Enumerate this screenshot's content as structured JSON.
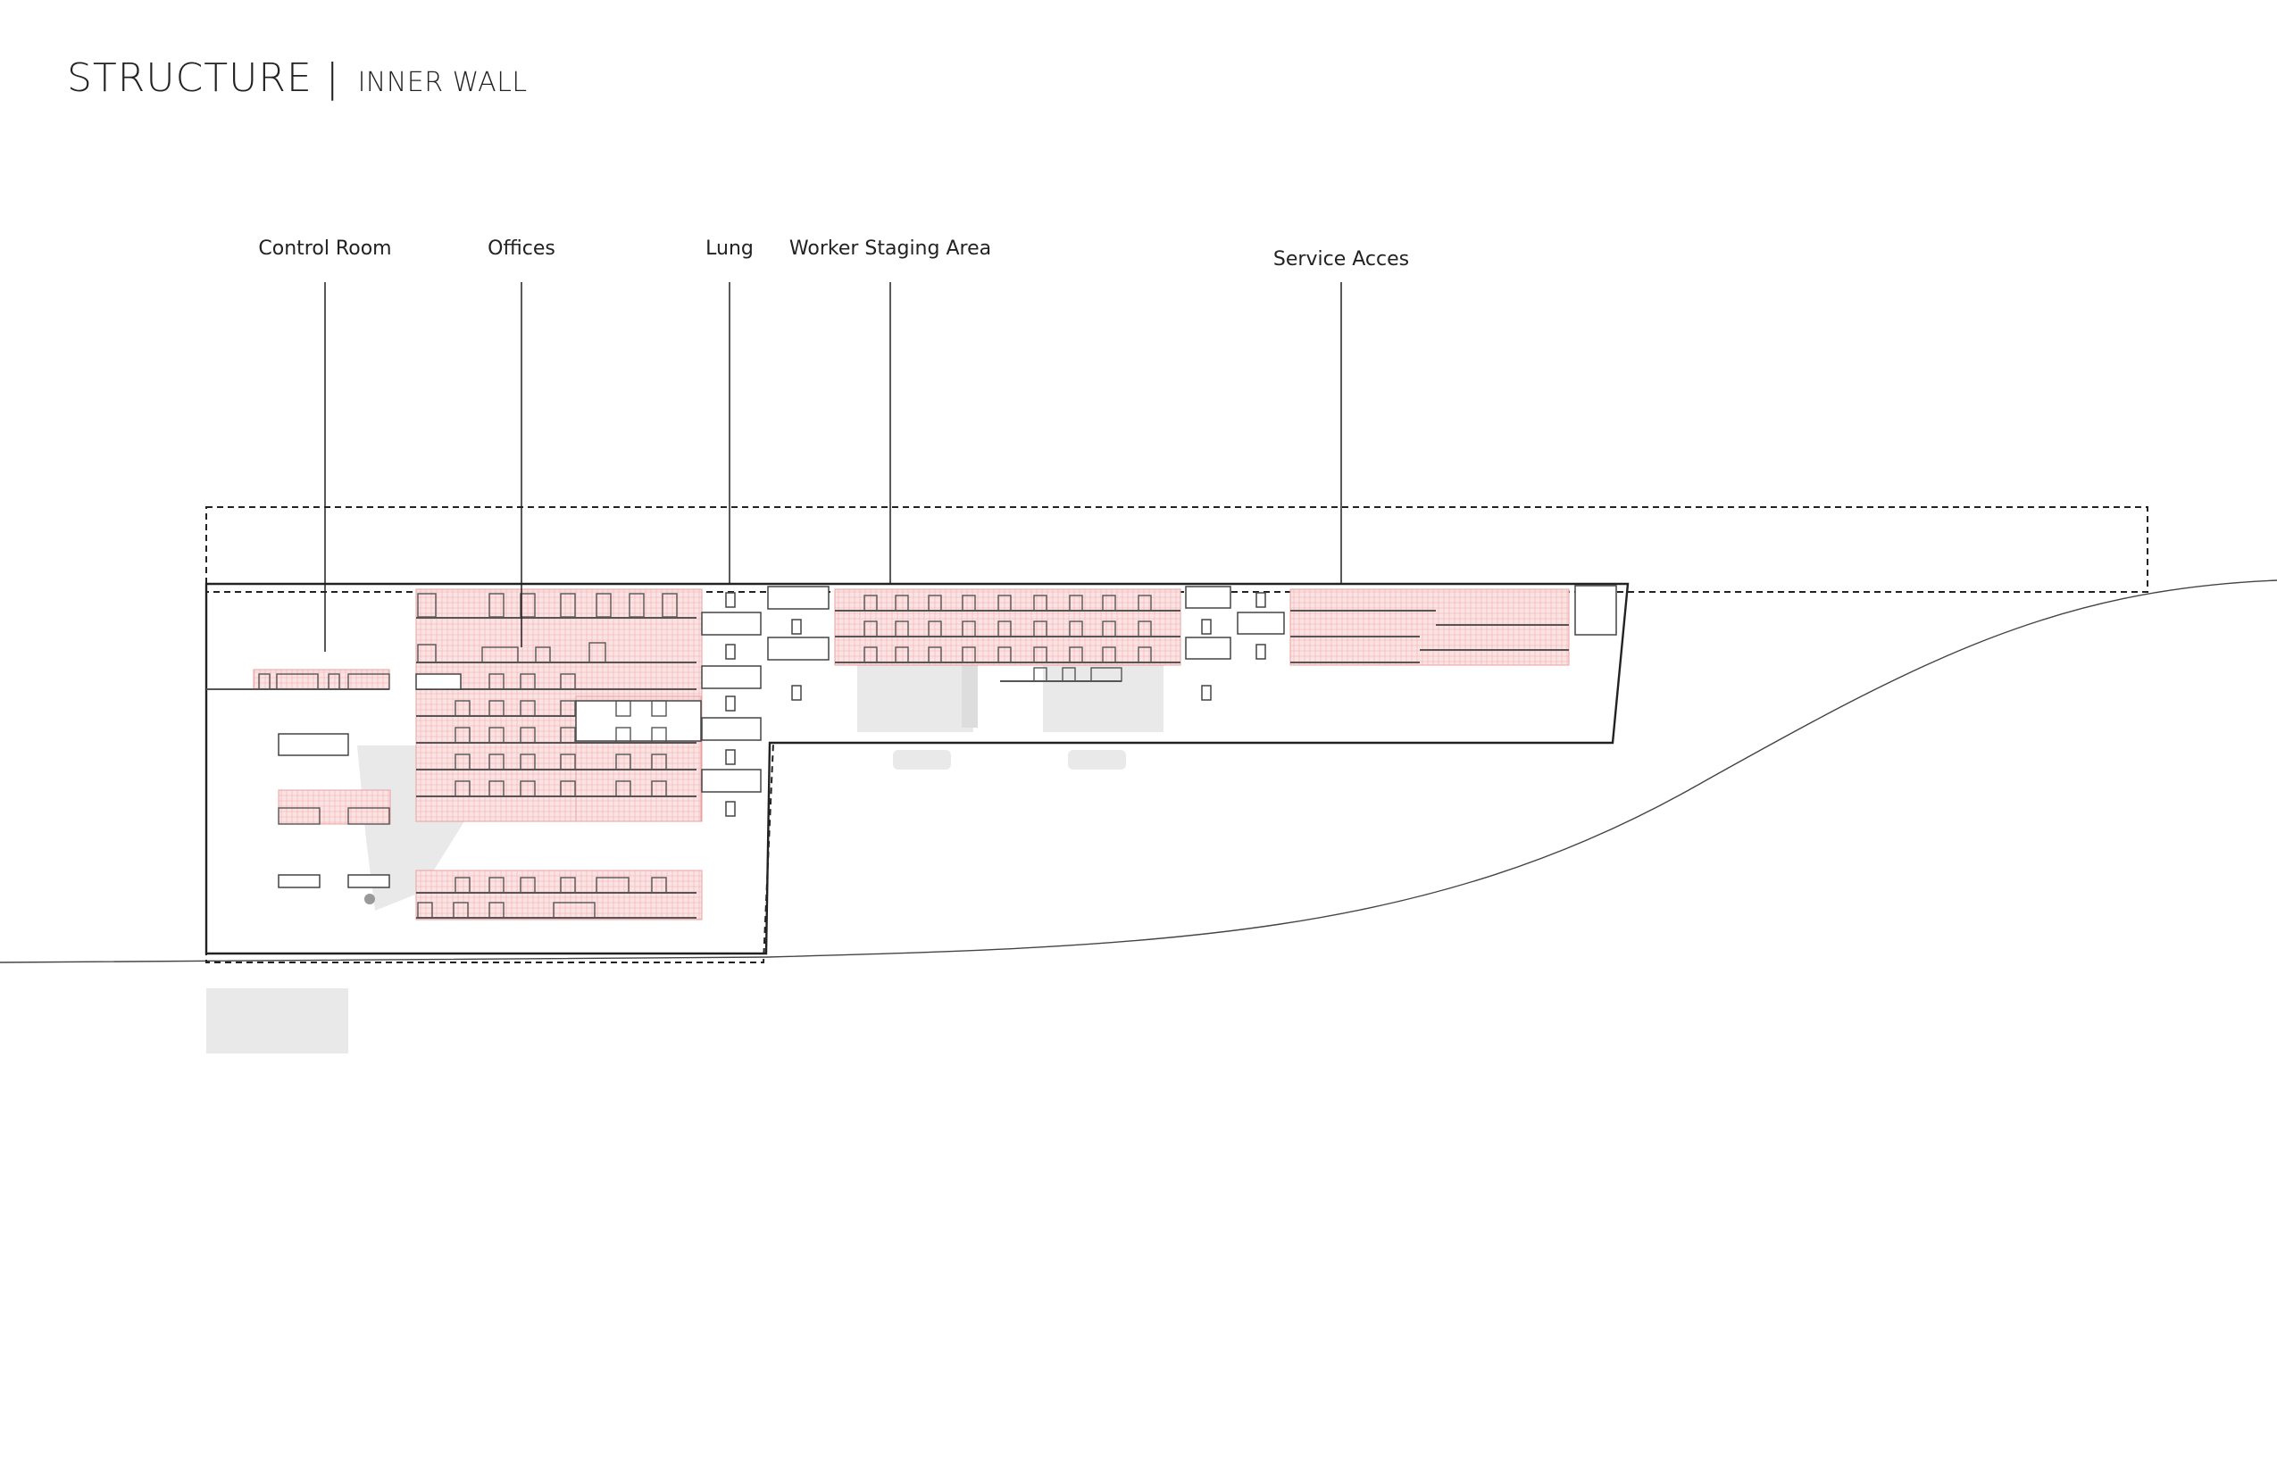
{
  "title": {
    "main": "STRUCTURE |",
    "sub": "INNER WALL"
  },
  "labels": [
    {
      "id": "control-room",
      "text": "Control Room"
    },
    {
      "id": "offices",
      "text": "Offices"
    },
    {
      "id": "lung",
      "text": "Lung"
    },
    {
      "id": "worker-staging-area",
      "text": "Worker Staging Area"
    },
    {
      "id": "service-acces",
      "text": "Service Acces"
    }
  ],
  "colors": {
    "line": "#222222",
    "room_fill": "#f6c9c9",
    "room_stroke": "#e8a0a0",
    "shadow": "#e6e6e6"
  }
}
